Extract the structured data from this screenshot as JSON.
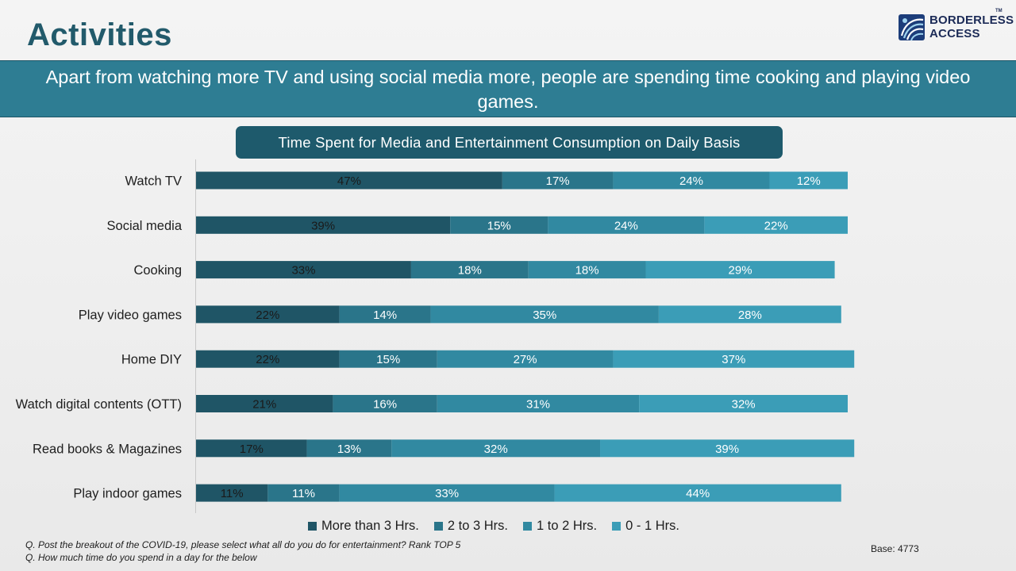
{
  "page": {
    "title": "Activities",
    "subtitle": "Apart from watching more TV and using social media more, people are spending time cooking and playing video games.",
    "logo_line1": "BORDERLESS",
    "logo_line2": "ACCESS",
    "logo_tm": "TM",
    "note1": "Q. Post the breakout of the COVID-19, please select what all do you do for entertainment? Rank TOP 5",
    "note2": "Q. How much time do you spend in a day for the below",
    "base": "Base: 4773"
  },
  "colors": {
    "series": [
      "#1f5566",
      "#2a758a",
      "#3189a1",
      "#3b9db7"
    ],
    "label_dark": "#1a1a1a",
    "label_light": "#ffffff"
  },
  "chart_data": {
    "type": "bar",
    "orientation": "horizontal",
    "stacked": true,
    "title": "Time Spent for Media and Entertainment Consumption on Daily Basis",
    "categories": [
      "Watch TV",
      "Social media",
      "Cooking",
      "Play video games",
      "Home DIY",
      "Watch digital contents (OTT)",
      "Read books & Magazines",
      "Play indoor games"
    ],
    "series": [
      {
        "name": "More than 3 Hrs.",
        "values": [
          47,
          39,
          33,
          22,
          22,
          21,
          17,
          11
        ]
      },
      {
        "name": "2 to 3 Hrs.",
        "values": [
          17,
          15,
          18,
          14,
          15,
          16,
          13,
          11
        ]
      },
      {
        "name": "1 to 2 Hrs.",
        "values": [
          24,
          24,
          18,
          35,
          27,
          31,
          32,
          33
        ]
      },
      {
        "name": "0 - 1 Hrs.",
        "values": [
          12,
          22,
          29,
          28,
          37,
          32,
          39,
          44
        ]
      }
    ],
    "value_suffix": "%",
    "legend_position": "bottom",
    "grid": false
  }
}
